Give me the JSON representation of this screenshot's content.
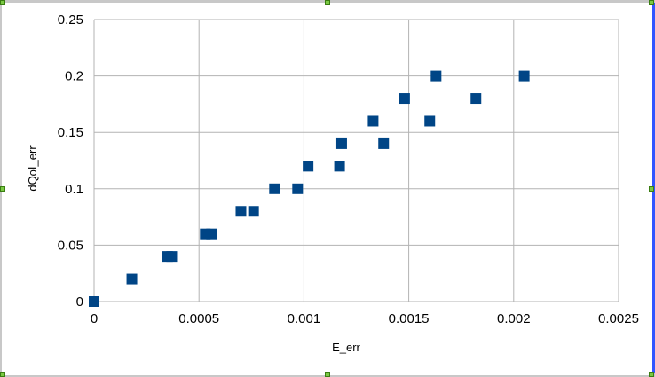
{
  "chart_data": {
    "type": "scatter",
    "title": "",
    "xlabel": "E_err",
    "ylabel": "dQoI_err",
    "xlim": [
      0,
      0.0025
    ],
    "ylim": [
      0,
      0.25
    ],
    "grid": true,
    "legend": "none",
    "x_ticks": [
      "0",
      "0.0005",
      "0.001",
      "0.0015",
      "0.002",
      "0.0025"
    ],
    "y_ticks": [
      "0",
      "0.05",
      "0.1",
      "0.15",
      "0.2",
      "0.25"
    ],
    "series": [
      {
        "color": "#004586",
        "marker": "square",
        "points": [
          [
            0.0,
            0.0
          ],
          [
            0.00018,
            0.02
          ],
          [
            0.00035,
            0.04
          ],
          [
            0.00037,
            0.04
          ],
          [
            0.00053,
            0.06
          ],
          [
            0.00056,
            0.06
          ],
          [
            0.0007,
            0.08
          ],
          [
            0.00076,
            0.08
          ],
          [
            0.00086,
            0.1
          ],
          [
            0.00097,
            0.1
          ],
          [
            0.00102,
            0.12
          ],
          [
            0.00117,
            0.12
          ],
          [
            0.00118,
            0.14
          ],
          [
            0.00133,
            0.16
          ],
          [
            0.00138,
            0.14
          ],
          [
            0.00148,
            0.18
          ],
          [
            0.0016,
            0.16
          ],
          [
            0.00163,
            0.2
          ],
          [
            0.00182,
            0.18
          ],
          [
            0.00205,
            0.2
          ]
        ]
      }
    ]
  }
}
